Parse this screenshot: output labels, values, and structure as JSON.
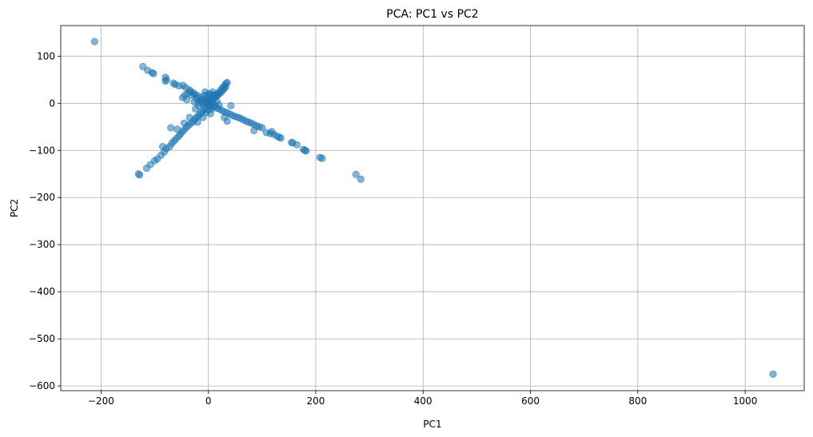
{
  "chart_data": {
    "type": "scatter",
    "title": "PCA: PC1 vs PC2",
    "xlabel": "PC1",
    "ylabel": "PC2",
    "xlim": [
      -275,
      1110
    ],
    "ylim": [
      -610,
      165
    ],
    "xticks": [
      -200,
      0,
      200,
      400,
      600,
      800,
      1000
    ],
    "yticks": [
      100,
      0,
      -100,
      -200,
      -300,
      -400,
      -500,
      -600
    ],
    "xtick_labels": [
      "−200",
      "0",
      "200",
      "400",
      "600",
      "800",
      "1000"
    ],
    "ytick_labels": [
      "100",
      "0",
      "−100",
      "−200",
      "−300",
      "−400",
      "−500",
      "−600"
    ],
    "grid": true,
    "marker_color": "#1f77b4",
    "marker_alpha": 0.55,
    "series": [
      {
        "points": [
          [
            -212,
            131
          ],
          [
            -122,
            78
          ],
          [
            -113,
            70
          ],
          [
            -105,
            65
          ],
          [
            -102,
            63
          ],
          [
            -80,
            55
          ],
          [
            -78,
            50
          ],
          [
            -80,
            47
          ],
          [
            -65,
            43
          ],
          [
            -62,
            40
          ],
          [
            -55,
            37
          ],
          [
            -47,
            38
          ],
          [
            -42,
            33
          ],
          [
            -35,
            28
          ],
          [
            -33,
            25
          ],
          [
            -28,
            22
          ],
          [
            -25,
            19
          ],
          [
            -20,
            16
          ],
          [
            -15,
            12
          ],
          [
            -10,
            8
          ],
          [
            -5,
            5
          ],
          [
            -30,
            17
          ],
          [
            -38,
            22
          ],
          [
            -44,
            17
          ],
          [
            -22,
            10
          ],
          [
            -12,
            3
          ],
          [
            -26,
            3
          ],
          [
            -40,
            8
          ],
          [
            -48,
            12
          ],
          [
            -18,
            -5
          ],
          [
            -128,
            -152
          ],
          [
            -130,
            -150
          ],
          [
            -115,
            -138
          ],
          [
            -108,
            -130
          ],
          [
            -100,
            -122
          ],
          [
            -95,
            -118
          ],
          [
            -88,
            -110
          ],
          [
            -82,
            -103
          ],
          [
            -78,
            -96
          ],
          [
            -85,
            -92
          ],
          [
            -72,
            -92
          ],
          [
            -68,
            -85
          ],
          [
            -64,
            -80
          ],
          [
            -60,
            -75
          ],
          [
            -55,
            -70
          ],
          [
            -52,
            -65
          ],
          [
            -70,
            -52
          ],
          [
            -48,
            -60
          ],
          [
            -44,
            -55
          ],
          [
            -40,
            -50
          ],
          [
            -36,
            -46
          ],
          [
            -32,
            -42
          ],
          [
            -28,
            -38
          ],
          [
            -25,
            -34
          ],
          [
            -22,
            -30
          ],
          [
            -18,
            -26
          ],
          [
            -15,
            -22
          ],
          [
            -12,
            -18
          ],
          [
            -8,
            -14
          ],
          [
            -5,
            -10
          ],
          [
            -58,
            -55
          ],
          [
            -45,
            -42
          ],
          [
            -35,
            -30
          ],
          [
            -20,
            -40
          ],
          [
            -10,
            -30
          ],
          [
            0,
            0
          ],
          [
            3,
            3
          ],
          [
            6,
            6
          ],
          [
            9,
            10
          ],
          [
            12,
            12
          ],
          [
            15,
            15
          ],
          [
            18,
            18
          ],
          [
            21,
            21
          ],
          [
            24,
            24
          ],
          [
            27,
            28
          ],
          [
            30,
            32
          ],
          [
            32,
            35
          ],
          [
            33,
            42
          ],
          [
            35,
            44
          ],
          [
            30,
            38
          ],
          [
            26,
            33
          ],
          [
            22,
            27
          ],
          [
            18,
            22
          ],
          [
            14,
            18
          ],
          [
            10,
            14
          ],
          [
            -2,
            18
          ],
          [
            2,
            20
          ],
          [
            6,
            18
          ],
          [
            10,
            16
          ],
          [
            -8,
            16
          ],
          [
            5,
            -5
          ],
          [
            10,
            -8
          ],
          [
            15,
            -10
          ],
          [
            20,
            -12
          ],
          [
            25,
            -15
          ],
          [
            30,
            -18
          ],
          [
            35,
            -20
          ],
          [
            40,
            -23
          ],
          [
            45,
            -26
          ],
          [
            50,
            -28
          ],
          [
            55,
            -30
          ],
          [
            60,
            -32
          ],
          [
            65,
            -35
          ],
          [
            70,
            -38
          ],
          [
            75,
            -40
          ],
          [
            80,
            -42
          ],
          [
            85,
            -45
          ],
          [
            90,
            -48
          ],
          [
            95,
            -50
          ],
          [
            100,
            -52
          ],
          [
            42,
            -5
          ],
          [
            30,
            -30
          ],
          [
            35,
            -38
          ],
          [
            85,
            -58
          ],
          [
            108,
            -62
          ],
          [
            115,
            -64
          ],
          [
            118,
            -60
          ],
          [
            122,
            -66
          ],
          [
            128,
            -70
          ],
          [
            132,
            -72
          ],
          [
            135,
            -74
          ],
          [
            155,
            -83
          ],
          [
            157,
            -84
          ],
          [
            165,
            -88
          ],
          [
            177,
            -98
          ],
          [
            180,
            -100
          ],
          [
            182,
            -101
          ],
          [
            208,
            -115
          ],
          [
            212,
            -117
          ],
          [
            275,
            -151
          ],
          [
            284,
            -161
          ],
          [
            1052,
            -575
          ],
          [
            -3,
            -3
          ],
          [
            -6,
            2
          ],
          [
            2,
            -6
          ],
          [
            8,
            2
          ],
          [
            -2,
            8
          ],
          [
            4,
            10
          ],
          [
            -10,
            -2
          ],
          [
            12,
            -4
          ],
          [
            -14,
            6
          ],
          [
            6,
            -12
          ],
          [
            0,
            12
          ],
          [
            0,
            -14
          ],
          [
            -4,
            -20
          ],
          [
            4,
            -22
          ],
          [
            -18,
            2
          ],
          [
            16,
            4
          ],
          [
            -6,
            24
          ],
          [
            8,
            24
          ],
          [
            -24,
            -12
          ],
          [
            20,
            -4
          ]
        ]
      }
    ]
  }
}
